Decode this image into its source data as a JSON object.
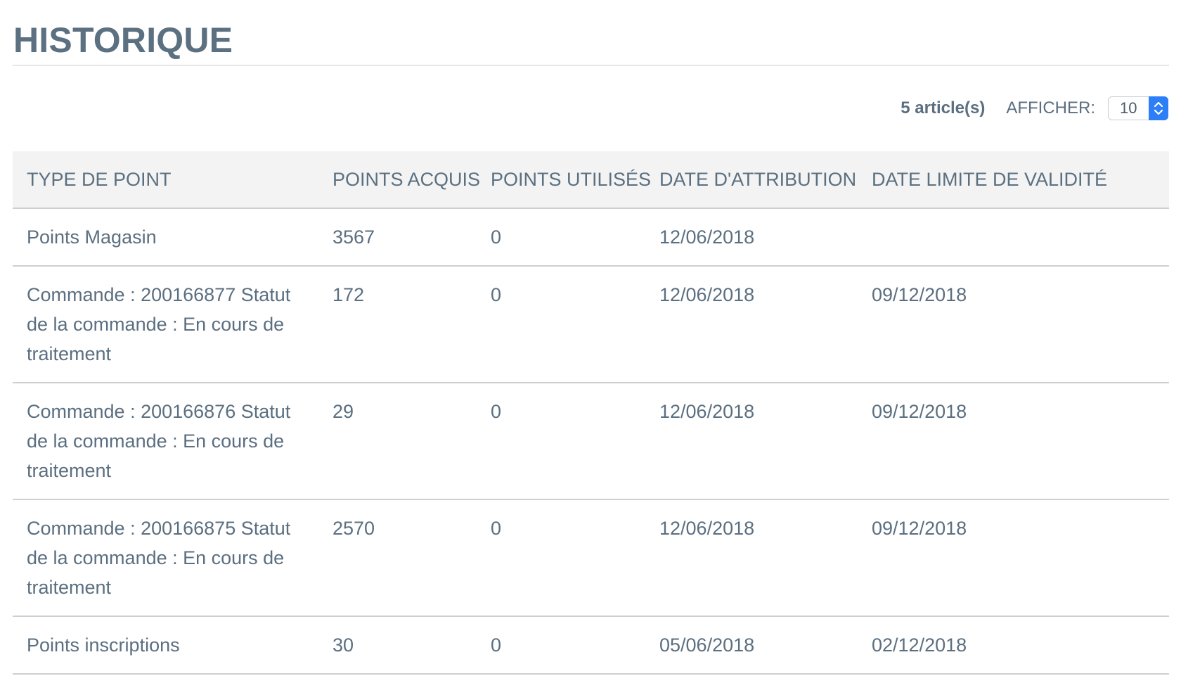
{
  "header": {
    "title": "HISTORIQUE"
  },
  "toolbar": {
    "count_label": "5 article(s)",
    "show_label": "AFFICHER:",
    "page_size": "10"
  },
  "table": {
    "columns": [
      "TYPE DE POINT",
      "POINTS ACQUIS",
      "POINTS UTILISÉS",
      "DATE D'ATTRIBUTION",
      "DATE LIMITE DE VALIDITÉ"
    ],
    "rows": [
      {
        "type": "Points Magasin",
        "acquired": "3567",
        "used": "0",
        "date": "12/06/2018",
        "limit": ""
      },
      {
        "type": "Commande : 200166877 Statut de la commande : En cours de traitement",
        "acquired": "172",
        "used": "0",
        "date": "12/06/2018",
        "limit": "09/12/2018"
      },
      {
        "type": "Commande : 200166876 Statut de la commande : En cours de traitement",
        "acquired": "29",
        "used": "0",
        "date": "12/06/2018",
        "limit": "09/12/2018"
      },
      {
        "type": "Commande : 200166875 Statut de la commande : En cours de traitement",
        "acquired": "2570",
        "used": "0",
        "date": "12/06/2018",
        "limit": "09/12/2018"
      },
      {
        "type": "Points inscriptions",
        "acquired": "30",
        "used": "0",
        "date": "05/06/2018",
        "limit": "02/12/2018"
      }
    ]
  },
  "colors": {
    "text": "#5b6f80",
    "header_bg": "#f3f3f3",
    "divider": "#cfcfcf",
    "select_accent": "#2d7ff7"
  },
  "icons": {
    "select_arrows": "chevron-up-down-icon"
  }
}
